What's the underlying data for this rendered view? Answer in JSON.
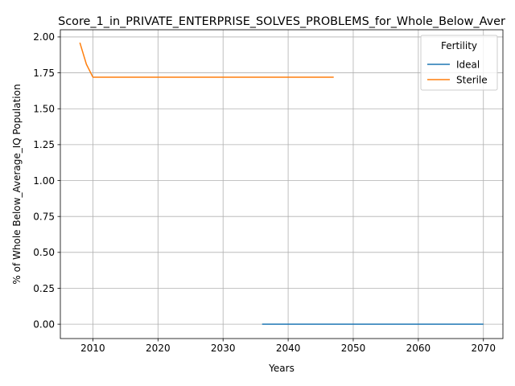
{
  "chart_data": {
    "type": "line",
    "title": "Score_1_in_PRIVATE_ENTERPRISE_SOLVES_PROBLEMS_for_Whole_Below_Aver",
    "xlabel": "Years",
    "ylabel": "% of Whole Below_Average_IQ Population",
    "xlim": [
      2005,
      2073
    ],
    "ylim": [
      -0.1,
      2.05
    ],
    "x_ticks": [
      2010,
      2020,
      2030,
      2040,
      2050,
      2060,
      2070
    ],
    "y_ticks": [
      0.0,
      0.25,
      0.5,
      0.75,
      1.0,
      1.25,
      1.5,
      1.75,
      2.0
    ],
    "y_tick_labels": [
      "0.00",
      "0.25",
      "0.50",
      "0.75",
      "1.00",
      "1.25",
      "1.50",
      "1.75",
      "2.00"
    ],
    "grid": true,
    "legend": {
      "title": "Fertility",
      "placement": "top-right"
    },
    "series": [
      {
        "name": "Ideal",
        "color": "#1f77b4",
        "x": [
          2036,
          2040,
          2045,
          2050,
          2055,
          2060,
          2065,
          2070
        ],
        "y": [
          0.0,
          0.0,
          0.0,
          0.0,
          0.0,
          0.0,
          0.0,
          0.0
        ]
      },
      {
        "name": "Sterile",
        "color": "#ff7f0e",
        "x": [
          2008,
          2009,
          2010,
          2015,
          2020,
          2025,
          2030,
          2035,
          2040,
          2045,
          2047
        ],
        "y": [
          1.96,
          1.81,
          1.72,
          1.72,
          1.72,
          1.72,
          1.72,
          1.72,
          1.72,
          1.72,
          1.72
        ]
      }
    ]
  }
}
